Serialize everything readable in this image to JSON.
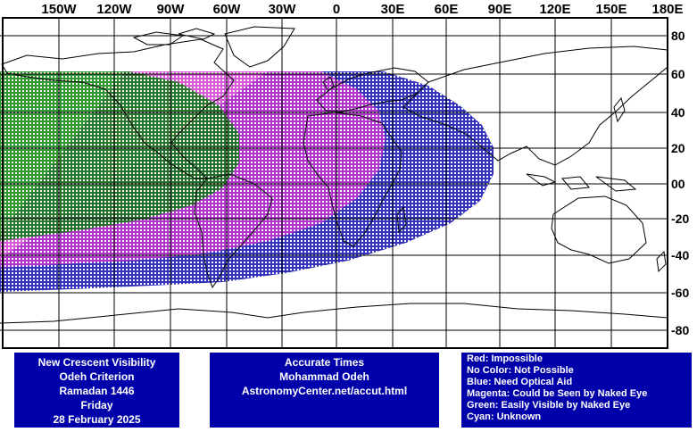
{
  "map": {
    "lon_labels": [
      "150W",
      "120W",
      "90W",
      "60W",
      "30W",
      "0",
      "30E",
      "60E",
      "90E",
      "120E",
      "150E",
      "180E"
    ],
    "lat_labels": [
      "80",
      "60",
      "40",
      "20",
      "00",
      "-20",
      "-40",
      "-60",
      "-80"
    ],
    "colors": {
      "green": "#007a00",
      "magenta": "#cc33cc",
      "blue": "#0000aa",
      "land": "#000000",
      "grid": "#000000"
    }
  },
  "panels": {
    "left": {
      "lines": [
        "New Crescent Visibility",
        "Odeh Criterion",
        "Ramadan 1446",
        "Friday",
        "28 February 2025"
      ]
    },
    "center": {
      "lines": [
        "Accurate Times",
        "Mohammad Odeh",
        "AstronomyCenter.net/accut.html"
      ]
    },
    "legend": {
      "lines": [
        "Red: Impossible",
        "No Color: Not Possible",
        "Blue: Need Optical Aid",
        "Magenta: Could be Seen by Naked Eye",
        "Green: Easily Visible by Naked Eye",
        "Cyan: Unknown"
      ]
    }
  }
}
